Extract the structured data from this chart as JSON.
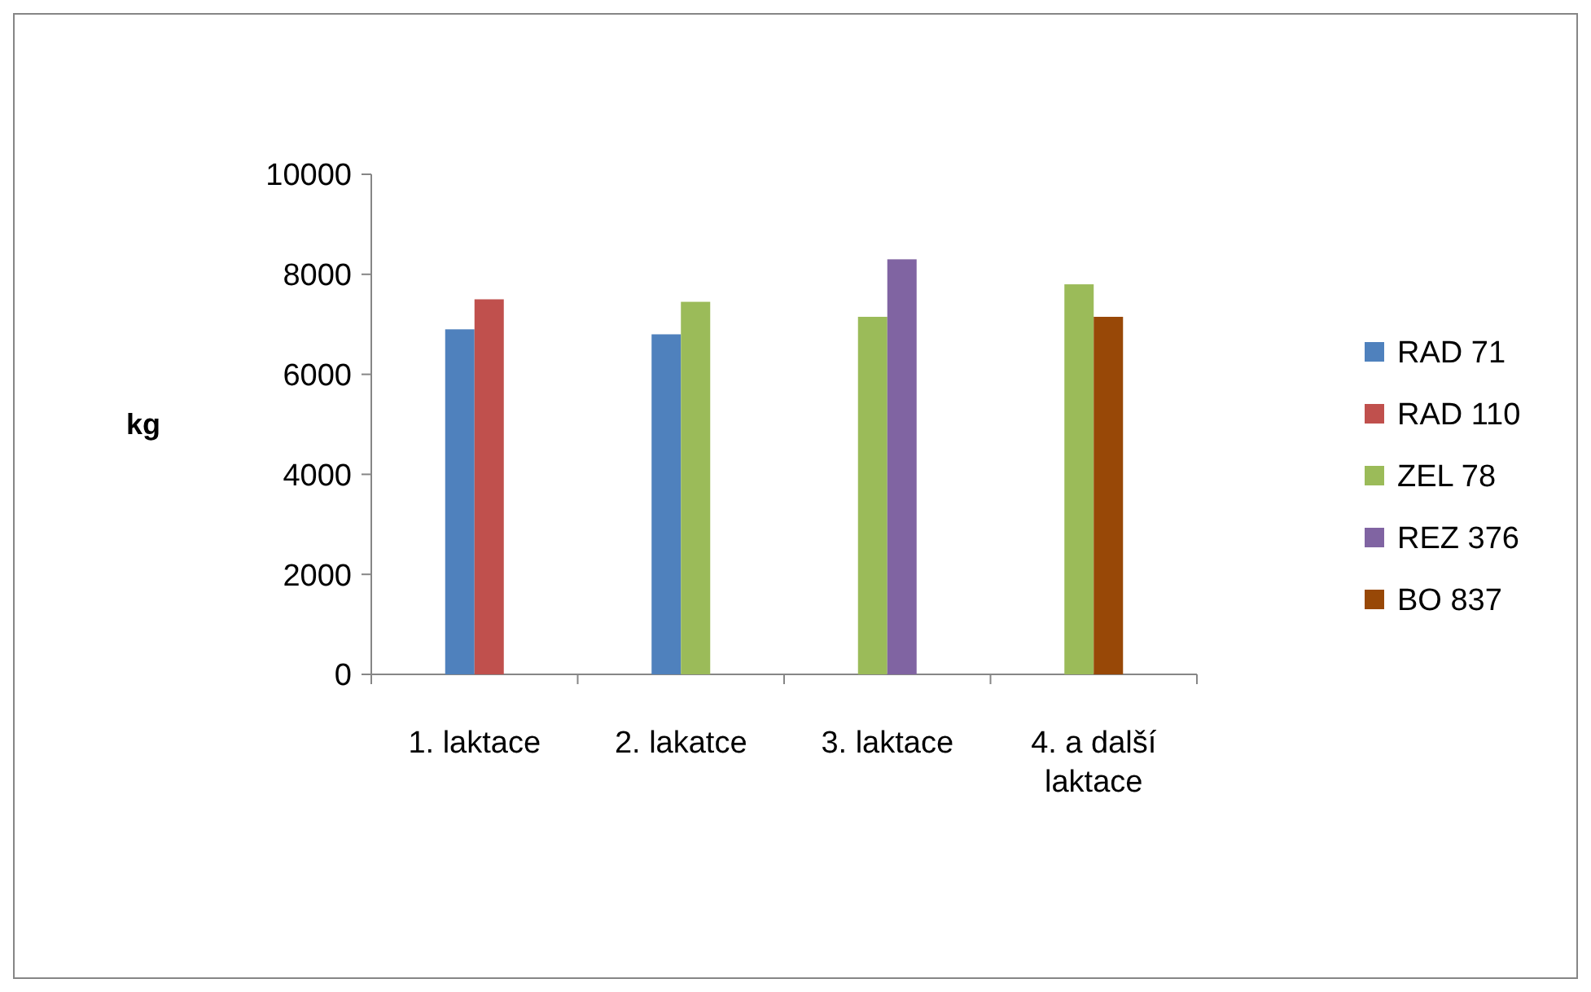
{
  "chart_data": {
    "type": "bar",
    "ylabel": "kg",
    "categories": [
      "1. laktace",
      "2. lakatce",
      "3. laktace",
      "4. a další laktace"
    ],
    "series": [
      {
        "name": "RAD 71",
        "color": "#4f81bd",
        "values": [
          6900,
          6800,
          null,
          null
        ]
      },
      {
        "name": "RAD 110",
        "color": "#c0504d",
        "values": [
          7500,
          null,
          null,
          null
        ]
      },
      {
        "name": "ZEL 78",
        "color": "#9bbb59",
        "values": [
          null,
          7450,
          7150,
          7800
        ]
      },
      {
        "name": "REZ 376",
        "color": "#8064a2",
        "values": [
          null,
          null,
          8300,
          null
        ]
      },
      {
        "name": "BO 837",
        "color": "#984807",
        "values": [
          null,
          null,
          null,
          7150
        ]
      }
    ],
    "ylim": [
      0,
      10000
    ],
    "yticks": [
      0,
      2000,
      4000,
      6000,
      8000,
      10000
    ],
    "legend": "right",
    "grid": false
  }
}
